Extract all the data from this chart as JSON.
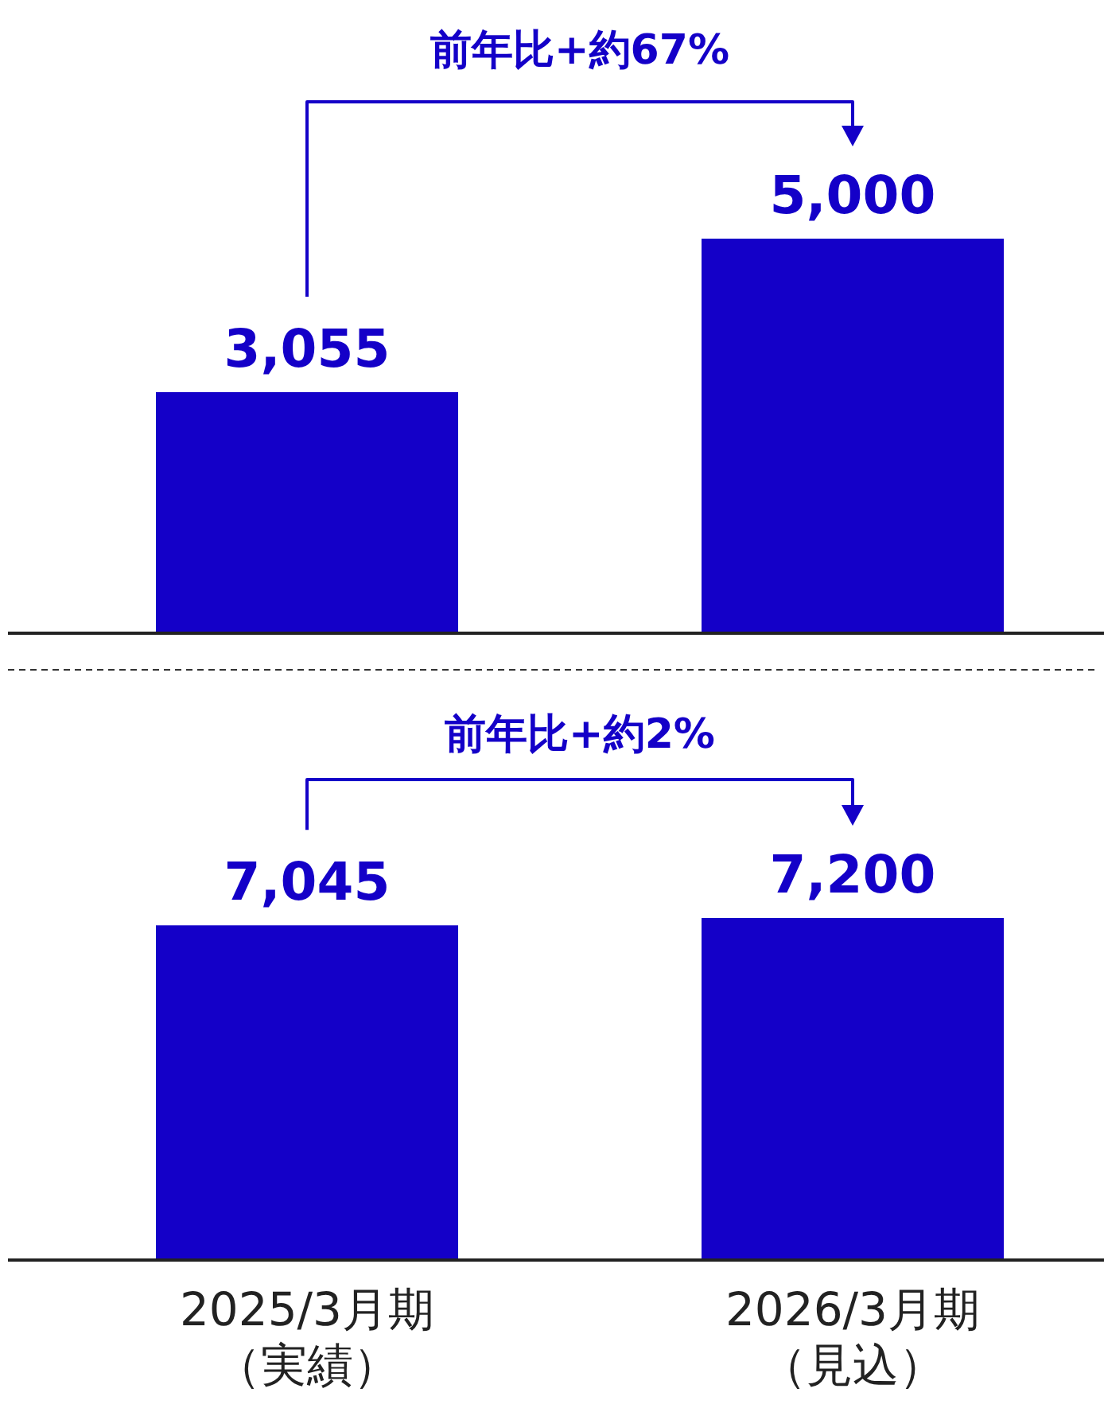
{
  "chart_data": [
    {
      "type": "bar",
      "values": [
        3055,
        5000
      ],
      "value_labels": [
        "3,055",
        "5,000"
      ],
      "color": "#1400c8",
      "annotations": [
        "前年比+約67%"
      ]
    },
    {
      "type": "bar",
      "categories": [
        "2025/3月期（実績）",
        "2026/3月期（見込）"
      ],
      "values": [
        7045,
        7200
      ],
      "value_labels": [
        "7,045",
        "7,200"
      ],
      "color": "#1400c8",
      "annotations": [
        "前年比+約2%"
      ]
    }
  ]
}
